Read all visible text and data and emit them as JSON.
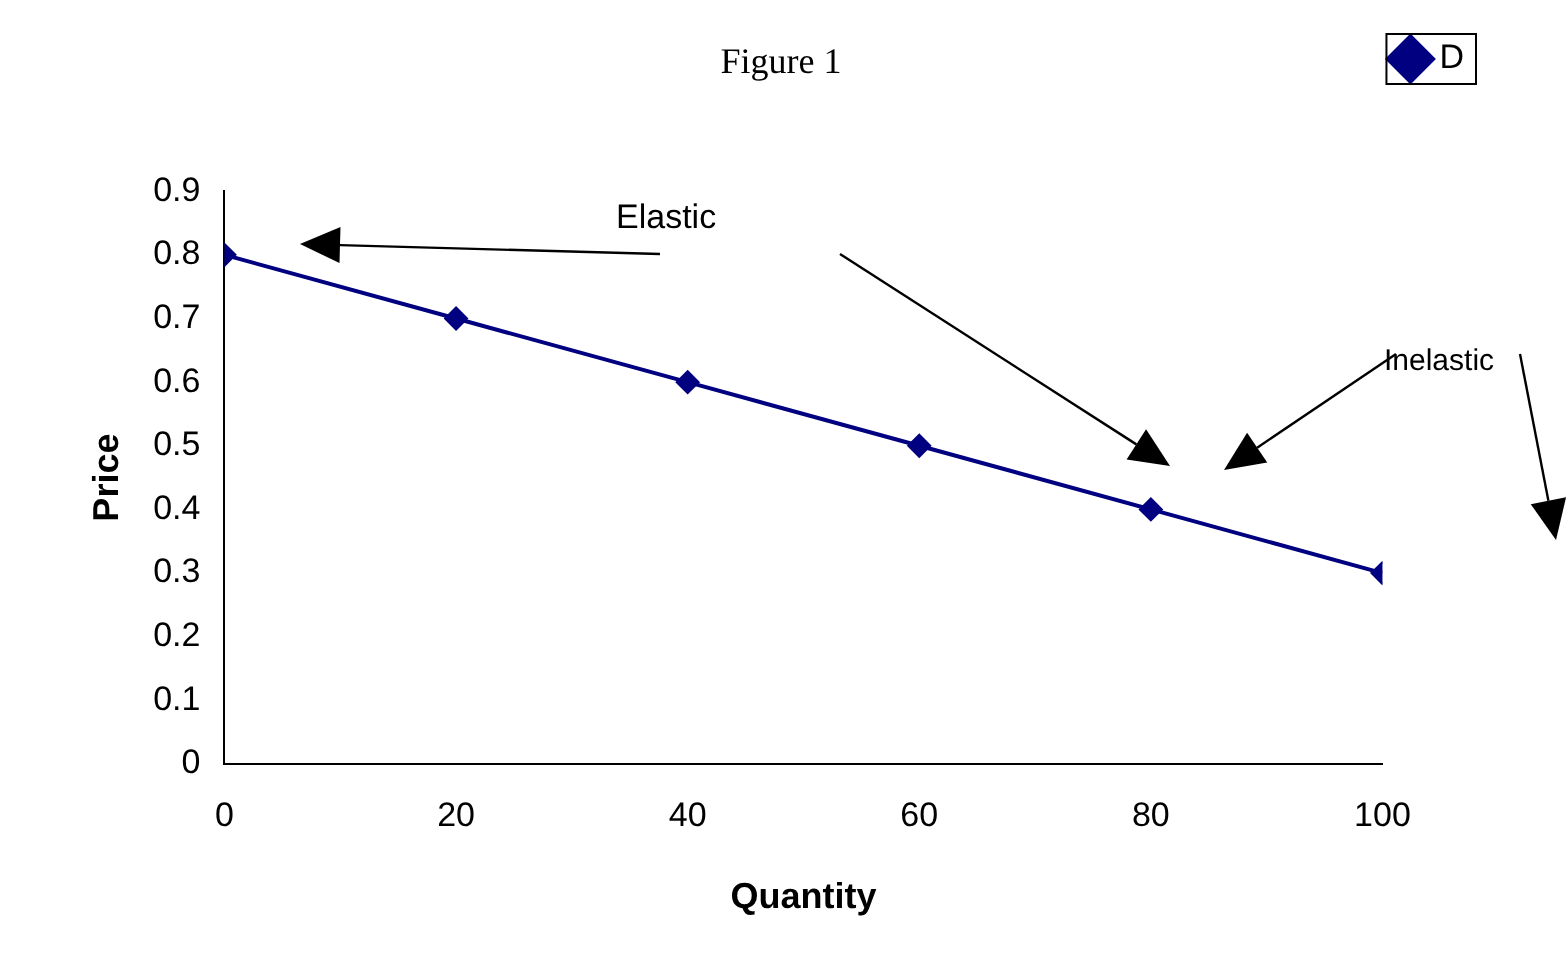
{
  "chart_data": {
    "type": "line",
    "title": "Figure 1",
    "xlabel": "Quantity",
    "ylabel": "Price",
    "x": [
      0,
      20,
      40,
      60,
      80,
      100
    ],
    "series": [
      {
        "name": "D",
        "color": "#000080",
        "values": [
          0.8,
          0.7,
          0.6,
          0.5,
          0.4,
          0.3
        ]
      }
    ],
    "xlim": [
      0,
      100
    ],
    "xticks": [
      0,
      20,
      40,
      60,
      80,
      100
    ],
    "ylim": [
      0,
      0.9
    ],
    "yticks": [
      0,
      0.1,
      0.2,
      0.3,
      0.4,
      0.5,
      0.6,
      0.7,
      0.8,
      0.9
    ],
    "annotations": [
      "Elastic",
      "Inelastic"
    ],
    "grid": false,
    "legend": "top right",
    "marker": "diamond",
    "line_style": "solid"
  }
}
